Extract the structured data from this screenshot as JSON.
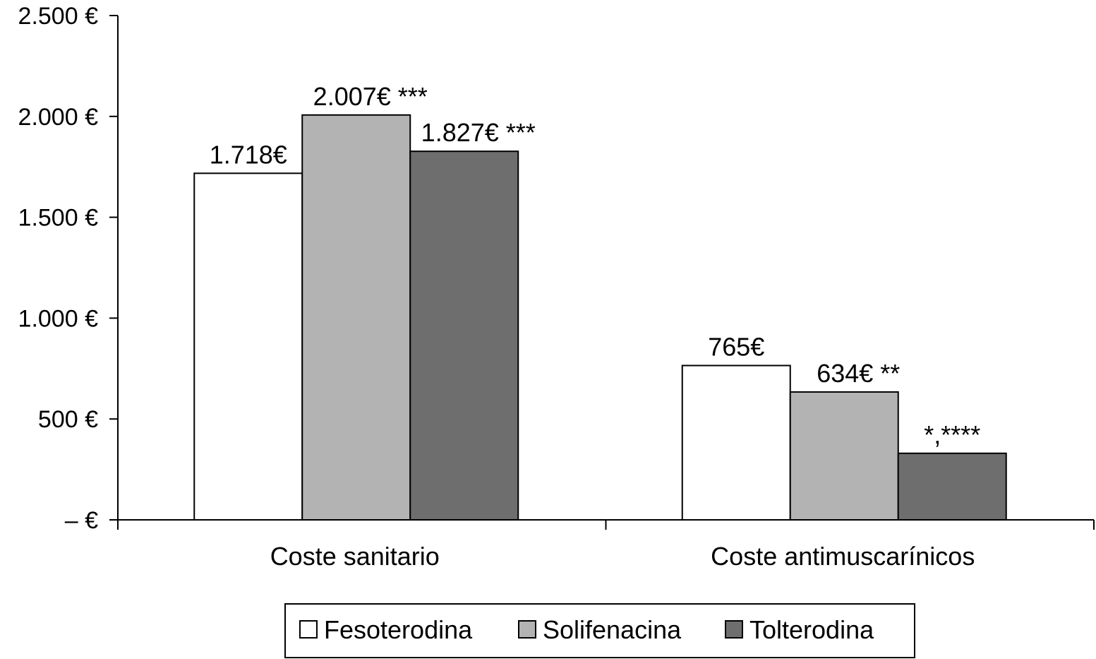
{
  "chart_data": {
    "type": "bar",
    "title": "",
    "xlabel": "",
    "ylabel": "",
    "ylim": [
      0,
      2500
    ],
    "y_ticks": [
      {
        "value": 2500,
        "label": "2.500 €"
      },
      {
        "value": 2000,
        "label": "2.000 €"
      },
      {
        "value": 1500,
        "label": "1.500 €"
      },
      {
        "value": 1000,
        "label": "1.000 €"
      },
      {
        "value": 500,
        "label": "500 €"
      },
      {
        "value": 0,
        "label": "– €"
      }
    ],
    "categories": [
      "Coste sanitario",
      "Coste antimuscarínicos"
    ],
    "series": [
      {
        "name": "Fesoterodina",
        "color": "#ffffff",
        "values": [
          1718,
          765
        ],
        "labels": [
          "1.718€",
          "765€"
        ]
      },
      {
        "name": "Solifenacina",
        "color": "#b3b3b3",
        "values": [
          2007,
          634
        ],
        "labels": [
          "2.007€ ***",
          "634€ **"
        ]
      },
      {
        "name": "Tolterodina",
        "color": "#6e6e6e",
        "values": [
          1827,
          330
        ],
        "labels": [
          "1.827€ ***",
          "*,****"
        ]
      }
    ],
    "grid": false,
    "legend_position": "bottom"
  }
}
